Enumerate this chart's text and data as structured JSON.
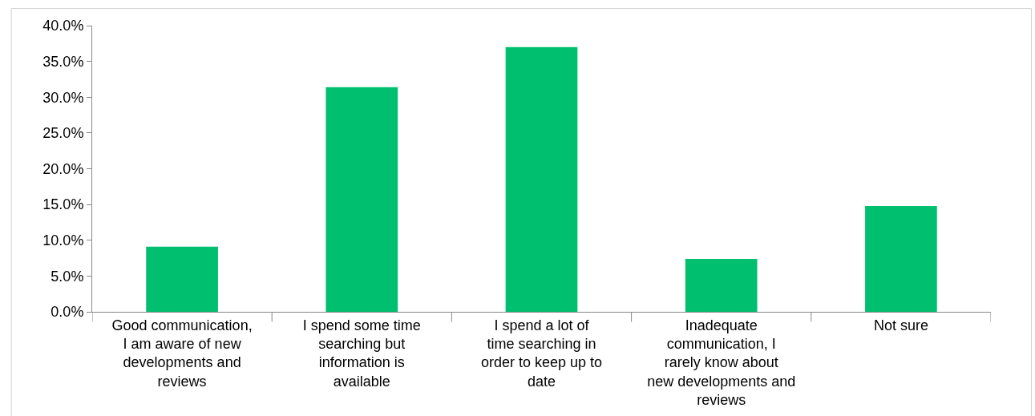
{
  "chart_data": {
    "type": "bar",
    "categories": [
      "Good communication, I am aware of new developments and reviews",
      "I spend some time searching but information is available",
      "I spend a lot of time searching in order to keep up to date",
      "Inadequate communication, I rarely know about new developments and reviews",
      "Not sure"
    ],
    "values": [
      9.1,
      31.4,
      37.0,
      7.4,
      14.8
    ],
    "color": "#00bf6f",
    "ylim": [
      0,
      40
    ],
    "yticks": [
      {
        "value": 0,
        "label": "0.0%"
      },
      {
        "value": 5,
        "label": "5.0%"
      },
      {
        "value": 10,
        "label": "10.0%"
      },
      {
        "value": 15,
        "label": "15.0%"
      },
      {
        "value": 20,
        "label": "20.0%"
      },
      {
        "value": 25,
        "label": "25.0%"
      },
      {
        "value": 30,
        "label": "30.0%"
      },
      {
        "value": 35,
        "label": "35.0%"
      },
      {
        "value": 40,
        "label": "40.0%"
      }
    ],
    "legend": false
  }
}
